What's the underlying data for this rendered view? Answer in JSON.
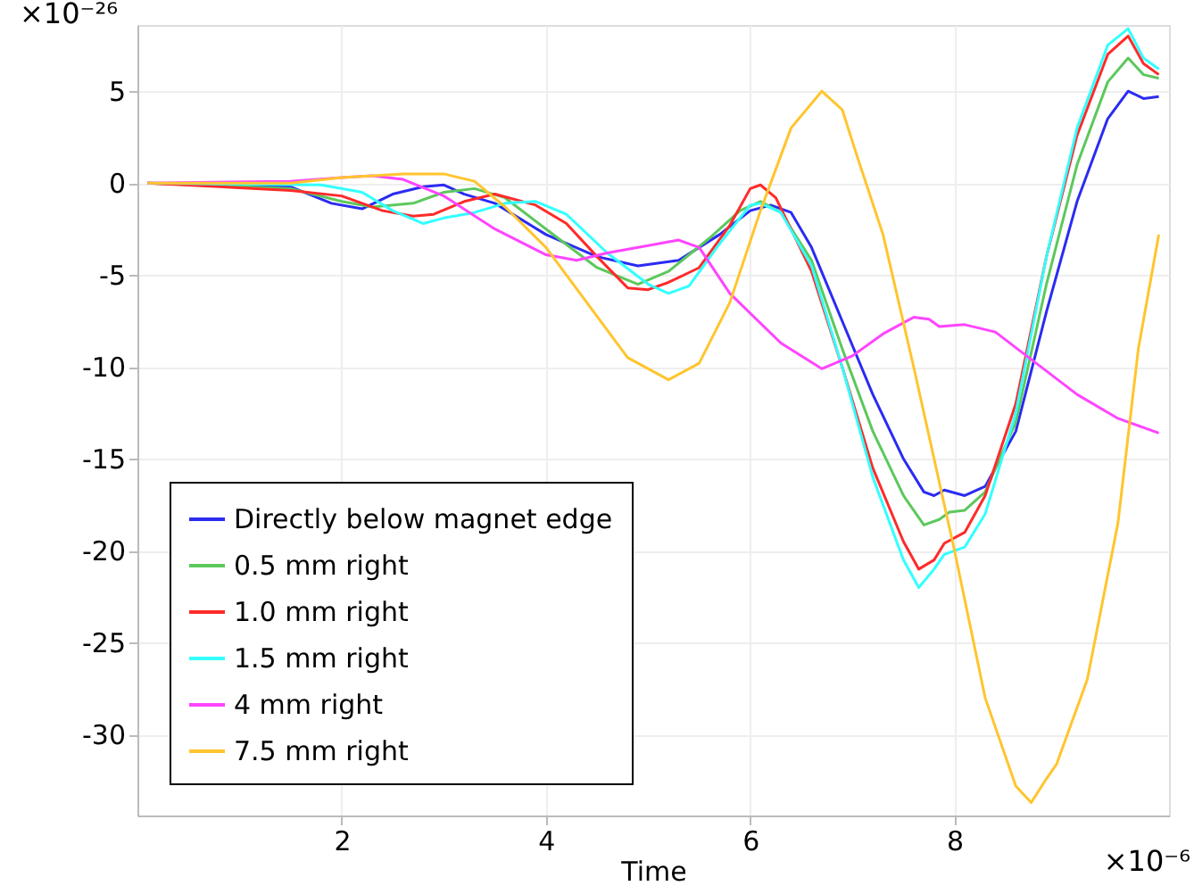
{
  "chart_data": {
    "type": "line",
    "xlabel": "Time",
    "annotations": [
      "×10⁻²⁶",
      "×10⁻⁶"
    ],
    "xlim": [
      0,
      10.1
    ],
    "ylim": [
      -34.4,
      8.6
    ],
    "xticks": [
      2,
      4,
      6,
      8
    ],
    "yticks": [
      5,
      0,
      -5,
      -10,
      -15,
      -20,
      -25,
      -30
    ],
    "grid": true,
    "legend": "bottom left",
    "line_style": "solid",
    "marker": "none",
    "series": [
      {
        "name": "Directly below magnet edge",
        "color": "#2b2bf2",
        "x": [
          0.1,
          1.5,
          1.9,
          2.2,
          2.5,
          2.8,
          3.0,
          3.2,
          3.5,
          4.0,
          4.5,
          4.9,
          5.3,
          5.7,
          6.0,
          6.2,
          6.4,
          6.6,
          6.9,
          7.2,
          7.5,
          7.7,
          7.8,
          7.9,
          8.1,
          8.3,
          8.6,
          8.9,
          9.2,
          9.5,
          9.7,
          9.85,
          10.0
        ],
        "values": [
          0,
          -0.2,
          -1.1,
          -1.4,
          -0.6,
          -0.2,
          -0.1,
          -0.6,
          -1.1,
          -2.8,
          -4.0,
          -4.5,
          -4.2,
          -2.8,
          -1.5,
          -1.2,
          -1.6,
          -3.5,
          -7.5,
          -11.5,
          -15,
          -16.8,
          -17.0,
          -16.7,
          -17.0,
          -16.5,
          -13.5,
          -7,
          -1,
          3.5,
          5.0,
          4.6,
          4.7
        ]
      },
      {
        "name": "0.5 mm right",
        "color": "#5cc85c",
        "x": [
          0.1,
          1.5,
          2.0,
          2.3,
          2.7,
          3.0,
          3.3,
          3.6,
          4.0,
          4.5,
          4.9,
          5.2,
          5.6,
          5.9,
          6.1,
          6.3,
          6.6,
          6.9,
          7.2,
          7.5,
          7.7,
          7.85,
          7.95,
          8.1,
          8.3,
          8.6,
          8.9,
          9.2,
          9.5,
          9.7,
          9.85,
          10.0
        ],
        "values": [
          0,
          -0.3,
          -1.0,
          -1.3,
          -1.1,
          -0.5,
          -0.3,
          -0.8,
          -2.5,
          -4.6,
          -5.5,
          -4.8,
          -3.0,
          -1.5,
          -1.0,
          -1.6,
          -4.2,
          -9,
          -13.5,
          -17,
          -18.6,
          -18.3,
          -17.9,
          -17.8,
          -16.8,
          -13,
          -5.5,
          1,
          5.5,
          6.8,
          5.9,
          5.7
        ]
      },
      {
        "name": "1.0 mm right",
        "color": "#ff2a2a",
        "x": [
          0.1,
          1.5,
          2.0,
          2.4,
          2.7,
          2.9,
          3.2,
          3.5,
          3.9,
          4.2,
          4.5,
          4.8,
          5.0,
          5.2,
          5.5,
          5.8,
          6.0,
          6.1,
          6.25,
          6.6,
          6.9,
          7.2,
          7.5,
          7.65,
          7.8,
          7.9,
          8.1,
          8.3,
          8.6,
          8.9,
          9.2,
          9.5,
          9.7,
          9.85,
          10.0
        ],
        "values": [
          0,
          -0.4,
          -0.7,
          -1.5,
          -1.8,
          -1.7,
          -1.0,
          -0.6,
          -1.2,
          -2.2,
          -4,
          -5.7,
          -5.8,
          -5.4,
          -4.6,
          -2.3,
          -0.3,
          -0.1,
          -0.8,
          -4.8,
          -10,
          -15.5,
          -19.5,
          -21,
          -20.5,
          -19.6,
          -19,
          -17,
          -12,
          -4,
          2.6,
          7.0,
          8.0,
          6.5,
          5.9
        ]
      },
      {
        "name": "1.5 mm right",
        "color": "#33ffff",
        "x": [
          0.1,
          1.8,
          2.2,
          2.5,
          2.8,
          3.0,
          3.3,
          3.6,
          3.9,
          4.2,
          4.6,
          5.0,
          5.2,
          5.4,
          5.7,
          6.0,
          6.1,
          6.3,
          6.6,
          6.9,
          7.2,
          7.5,
          7.65,
          7.8,
          7.9,
          8.1,
          8.3,
          8.6,
          8.9,
          9.2,
          9.5,
          9.7,
          9.85,
          10.0
        ],
        "values": [
          0,
          -0.1,
          -0.5,
          -1.5,
          -2.2,
          -1.9,
          -1.6,
          -1.1,
          -1.0,
          -1.7,
          -3.8,
          -5.5,
          -6.0,
          -5.6,
          -3.3,
          -1.2,
          -1.1,
          -1.6,
          -4.5,
          -10,
          -16,
          -20.5,
          -22,
          -21,
          -20.2,
          -19.8,
          -18,
          -12.5,
          -4,
          3,
          7.5,
          8.4,
          6.8,
          6.2
        ]
      },
      {
        "name": "4 mm right",
        "color": "#ff44ff",
        "x": [
          0.1,
          1.5,
          2.0,
          2.3,
          2.6,
          3.0,
          3.5,
          4.0,
          4.3,
          4.6,
          5.0,
          5.3,
          5.5,
          5.8,
          6.3,
          6.7,
          7.0,
          7.3,
          7.6,
          7.75,
          7.85,
          8.1,
          8.4,
          8.8,
          9.2,
          9.6,
          10.0
        ],
        "values": [
          0,
          0.1,
          0.3,
          0.4,
          0.2,
          -0.7,
          -2.5,
          -3.9,
          -4.2,
          -3.8,
          -3.4,
          -3.1,
          -3.5,
          -6,
          -8.7,
          -10.1,
          -9.4,
          -8.2,
          -7.3,
          -7.4,
          -7.8,
          -7.7,
          -8.1,
          -9.8,
          -11.5,
          -12.8,
          -13.6
        ]
      },
      {
        "name": "7.5 mm right",
        "color": "#ffc52e",
        "x": [
          0.1,
          1.5,
          2.0,
          2.6,
          3.0,
          3.3,
          3.6,
          4.0,
          4.4,
          4.8,
          5.2,
          5.5,
          5.8,
          6.1,
          6.4,
          6.7,
          6.9,
          7.05,
          7.3,
          7.6,
          8.0,
          8.3,
          8.6,
          8.75,
          8.9,
          9.0,
          9.3,
          9.6,
          9.8,
          10.0
        ],
        "values": [
          0,
          0,
          0.3,
          0.5,
          0.5,
          0.1,
          -1.3,
          -3.5,
          -6.5,
          -9.5,
          -10.7,
          -9.8,
          -6.5,
          -1.5,
          3,
          5.0,
          4.0,
          1.4,
          -2.8,
          -10,
          -20,
          -28,
          -32.8,
          -33.7,
          -32.4,
          -31.6,
          -27,
          -18.5,
          -9,
          -2.8
        ]
      }
    ]
  }
}
